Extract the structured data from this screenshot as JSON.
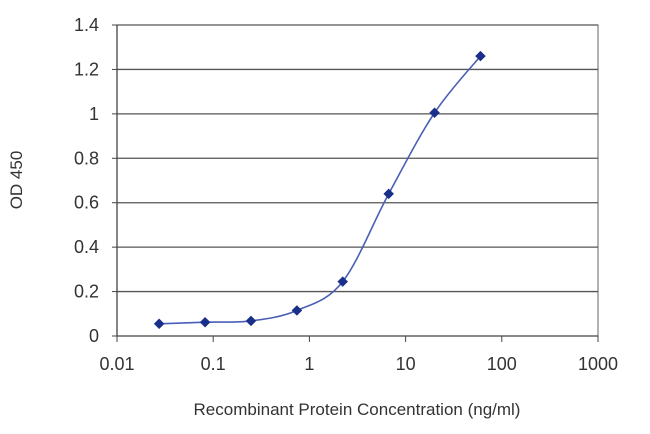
{
  "chart_data": {
    "type": "scatter",
    "title": "",
    "xlabel": "Recombinant Protein Concentration (ng/ml)",
    "ylabel": "OD 450",
    "x_scale": "log",
    "xlim": [
      0.01,
      1000
    ],
    "ylim": [
      0,
      1.4
    ],
    "x_ticks": [
      0.01,
      0.1,
      1,
      10,
      100,
      1000
    ],
    "x_tick_labels": [
      "0.01",
      "0.1",
      "1",
      "10",
      "100",
      "1000"
    ],
    "y_ticks": [
      0,
      0.2,
      0.4,
      0.6,
      0.8,
      1,
      1.2,
      1.4
    ],
    "y_tick_labels": [
      "0",
      "0.2",
      "0.4",
      "0.6",
      "0.8",
      "1",
      "1.2",
      "1.4"
    ],
    "grid": "horizontal",
    "legend": "none",
    "series": [
      {
        "x": [
          0.0274,
          0.0823,
          0.247,
          0.741,
          2.22,
          6.67,
          20,
          60
        ],
        "y": [
          0.055,
          0.062,
          0.068,
          0.115,
          0.245,
          0.64,
          1.005,
          1.26
        ]
      }
    ],
    "line_color": "#4a5fb5",
    "marker_color": "#1a2f8a",
    "grid_color": "#555555"
  }
}
